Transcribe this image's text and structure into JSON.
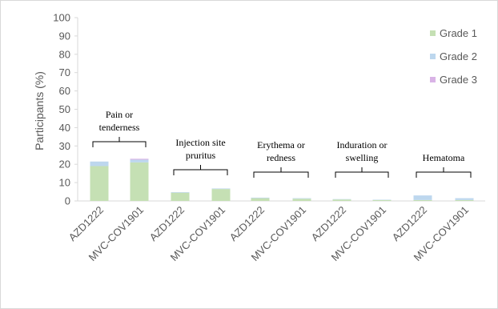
{
  "chart_data": {
    "type": "bar",
    "stacked": true,
    "ylabel": "Participants (%)",
    "ylim": [
      0,
      100
    ],
    "yticks": [
      0,
      10,
      20,
      30,
      40,
      50,
      60,
      70,
      80,
      90,
      100
    ],
    "grid": false,
    "legend_position": "right",
    "categories": [
      "AZD1222",
      "MVC-COV1901",
      "AZD1222",
      "MVC-COV1901",
      "AZD1222",
      "MVC-COV1901",
      "AZD1222",
      "MVC-COV1901",
      "AZD1222",
      "MVC-COV1901"
    ],
    "groups": [
      {
        "label_lines": [
          "Pain or",
          "tenderness"
        ]
      },
      {
        "label_lines": [
          "Injection site",
          "pruritus"
        ]
      },
      {
        "label_lines": [
          "Erythema or",
          "redness"
        ]
      },
      {
        "label_lines": [
          "Induration or",
          "swelling"
        ]
      },
      {
        "label_lines": [
          "Hematoma"
        ]
      }
    ],
    "series": [
      {
        "name": "Grade 1",
        "color": "#c5e0b4",
        "values": [
          19,
          21,
          4.5,
          6.5,
          1.5,
          1.2,
          0.8,
          0.5,
          0.5,
          0.5
        ]
      },
      {
        "name": "Grade 2",
        "color": "#bdd7ee",
        "values": [
          2.5,
          1.5,
          0.3,
          0.3,
          0.3,
          0.3,
          0.2,
          0.2,
          2.5,
          1.0
        ]
      },
      {
        "name": "Grade 3",
        "color": "#d9b3e6",
        "values": [
          0,
          0.5,
          0,
          0,
          0,
          0,
          0,
          0,
          0,
          0
        ]
      }
    ]
  }
}
